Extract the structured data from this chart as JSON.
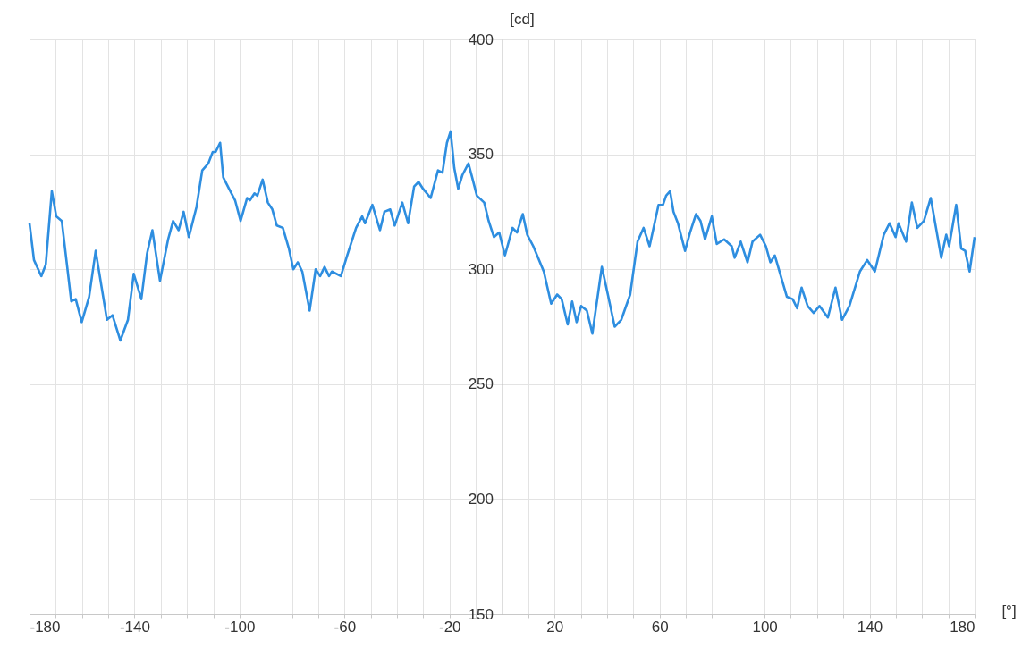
{
  "chart_data": {
    "type": "line",
    "xlabel": "[°]",
    "ylabel": "[cd]",
    "xlim": [
      -180,
      180
    ],
    "ylim": [
      150,
      400
    ],
    "xticks": [
      -180,
      {
        "value": -170,
        "label": null
      },
      {
        "value": -160,
        "label": null
      },
      {
        "value": -150,
        "label": null
      },
      -140,
      {
        "value": -130,
        "label": null
      },
      {
        "value": -120,
        "label": null
      },
      {
        "value": -110,
        "label": null
      },
      -100,
      {
        "value": -90,
        "label": null
      },
      {
        "value": -80,
        "label": null
      },
      {
        "value": -70,
        "label": null
      },
      -60,
      {
        "value": -50,
        "label": null
      },
      {
        "value": -40,
        "label": null
      },
      {
        "value": -30,
        "label": null
      },
      -20,
      {
        "value": -10,
        "label": null
      },
      {
        "value": 0,
        "label": null
      },
      {
        "value": 10,
        "label": null
      },
      20,
      {
        "value": 30,
        "label": null
      },
      {
        "value": 40,
        "label": null
      },
      {
        "value": 50,
        "label": null
      },
      60,
      {
        "value": 70,
        "label": null
      },
      {
        "value": 80,
        "label": null
      },
      {
        "value": 90,
        "label": null
      },
      100,
      {
        "value": 110,
        "label": null
      },
      {
        "value": 120,
        "label": null
      },
      {
        "value": 130,
        "label": null
      },
      140,
      {
        "value": 150,
        "label": null
      },
      {
        "value": 160,
        "label": null
      },
      {
        "value": 170,
        "label": null
      },
      180
    ],
    "yticks": [
      150,
      200,
      250,
      300,
      350,
      400
    ],
    "grid": true,
    "marker": "none",
    "line_style": "solid",
    "series": [
      {
        "color": "#2e8ee0",
        "x": [
          -180,
          -178.3,
          -175.5,
          -173.8,
          -171.5,
          -169.8,
          -167.7,
          -164.1,
          -162.4,
          -160.1,
          -157.3,
          -154.8,
          -150.5,
          -148.4,
          -145.4,
          -142.5,
          -140.3,
          -137.4,
          -135.2,
          -133.2,
          -130.3,
          -127.2,
          -125.3,
          -123.2,
          -121.3,
          -119.3,
          -116.4,
          -114.2,
          -111.9,
          -110.2,
          -109.1,
          -107.4,
          -106.2,
          -104.0,
          -101.7,
          -99.6,
          -97.1,
          -96.0,
          -94.3,
          -93.2,
          -91.2,
          -89.2,
          -87.5,
          -85.8,
          -83.5,
          -81.2,
          -79.5,
          -77.8,
          -76.1,
          -73.3,
          -71.0,
          -69.3,
          -67.6,
          -65.9,
          -64.8,
          -61.4,
          -59.0,
          -55.6,
          -53.3,
          -52.2,
          -49.4,
          -46.5,
          -44.8,
          -42.6,
          -40.9,
          -38.0,
          -35.8,
          -33.5,
          -31.8,
          -30.1,
          -27.2,
          -24.4,
          -22.7,
          -21.0,
          -19.6,
          -18.2,
          -16.7,
          -15.1,
          -12.8,
          -11.4,
          -9.6,
          -6.8,
          -5.1,
          -3.1,
          -1.1,
          1.1,
          4.0,
          5.7,
          7.9,
          9.6,
          11.9,
          15.9,
          18.7,
          21.0,
          22.7,
          25.0,
          26.7,
          28.4,
          30.1,
          32.3,
          34.4,
          38.0,
          40.3,
          42.9,
          45.4,
          48.8,
          51.6,
          53.9,
          56.2,
          59.6,
          61.3,
          62.5,
          64.0,
          65.3,
          67.0,
          69.7,
          71.6,
          73.9,
          75.6,
          77.3,
          79.9,
          81.8,
          84.6,
          87.5,
          88.6,
          90.9,
          93.5,
          95.4,
          98.3,
          100.5,
          102.2,
          103.9,
          108.5,
          110.7,
          112.4,
          114.1,
          116.4,
          118.7,
          120.9,
          124.1,
          127.0,
          129.5,
          132.3,
          136.3,
          139.1,
          142.0,
          145.4,
          147.6,
          149.9,
          151.0,
          153.9,
          156.1,
          158.2,
          160.7,
          163.3,
          167.3,
          169.2,
          170.3,
          173.0,
          174.9,
          176.4,
          178.1,
          180.0
        ],
        "values": [
          320,
          304,
          297,
          302,
          334,
          323,
          321,
          286,
          287,
          277,
          288,
          308,
          278,
          280,
          269,
          278,
          298,
          287,
          307,
          317,
          295,
          313,
          321,
          317,
          325,
          314,
          327,
          343,
          346,
          351,
          351,
          355,
          340,
          335,
          330,
          321,
          331,
          330,
          333,
          332,
          339,
          329,
          326,
          319,
          318,
          309,
          300,
          303,
          299,
          282,
          300,
          297,
          301,
          297,
          299,
          297,
          306,
          318,
          323,
          320,
          328,
          317,
          325,
          326,
          319,
          329,
          320,
          336,
          338,
          335,
          331,
          343,
          342,
          355,
          360,
          344,
          335,
          341,
          346,
          340,
          332,
          329,
          321,
          314,
          316,
          306,
          318,
          316,
          324,
          315,
          310,
          299,
          285,
          289,
          287,
          276,
          286,
          277,
          284,
          282,
          272,
          301,
          289,
          275,
          278,
          289,
          312,
          318,
          310,
          328,
          328,
          332,
          334,
          325,
          320,
          308,
          316,
          324,
          321,
          313,
          323,
          311,
          313,
          310,
          305,
          312,
          303,
          312,
          315,
          310,
          303,
          306,
          288,
          287,
          283,
          292,
          284,
          281,
          284,
          279,
          292,
          278,
          284,
          299,
          304,
          299,
          315,
          320,
          314,
          320,
          312,
          329,
          318,
          321,
          331,
          305,
          315,
          310,
          328,
          309,
          308,
          299,
          314
        ]
      }
    ]
  }
}
